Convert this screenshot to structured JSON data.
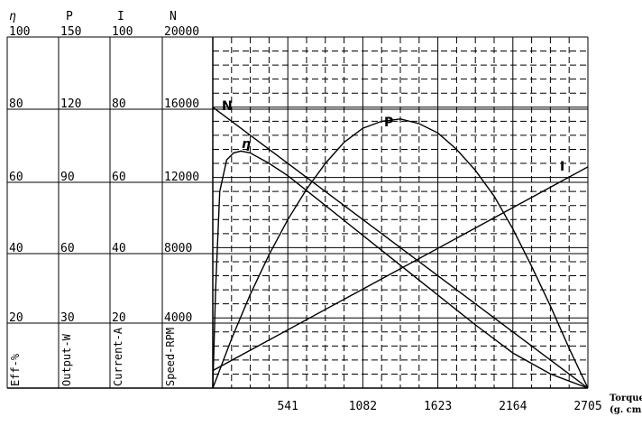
{
  "chart_data": {
    "type": "line",
    "x_axis": {
      "label_line1": "Torque",
      "label_line2": "(g. cm)",
      "ticks": [
        "541",
        "1082",
        "1623",
        "2164",
        "2705"
      ],
      "tick_values": [
        541,
        1082,
        1623,
        2164,
        2705
      ],
      "range": [
        0,
        2705
      ]
    },
    "y_axes": [
      {
        "symbol": "η",
        "title": "Eff-%",
        "top": "100",
        "ticks": [
          "80",
          "60",
          "40",
          "20"
        ],
        "range": [
          0,
          100
        ]
      },
      {
        "symbol": "P",
        "title": "Output-W",
        "top": "150",
        "ticks": [
          "120",
          "90",
          "60",
          "30"
        ],
        "range": [
          0,
          150
        ]
      },
      {
        "symbol": "I",
        "title": "Current-A",
        "top": "100",
        "ticks": [
          "80",
          "60",
          "40",
          "20"
        ],
        "range": [
          0,
          100
        ]
      },
      {
        "symbol": "N",
        "title": "Speed-RPM",
        "top": "20000",
        "ticks": [
          "16000",
          "12000",
          "8000",
          "4000"
        ],
        "range": [
          0,
          20000
        ]
      }
    ],
    "series": [
      {
        "name": "N",
        "axis": 3,
        "x": [
          0,
          2705
        ],
        "y": [
          16000,
          0
        ]
      },
      {
        "name": "I",
        "axis": 2,
        "x": [
          0,
          2705
        ],
        "y": [
          5,
          63
        ]
      },
      {
        "name": "P",
        "axis": 1,
        "x": [
          0,
          135,
          270,
          406,
          541,
          676,
          812,
          947,
          1082,
          1217,
          1353,
          1488,
          1623,
          1758,
          1894,
          2029,
          2164,
          2299,
          2435,
          2570,
          2705
        ],
        "y": [
          0,
          21,
          40,
          57,
          72,
          85,
          96,
          105,
          111,
          114,
          115,
          113,
          109,
          102,
          93,
          82,
          68,
          52,
          35,
          17,
          0
        ]
      },
      {
        "name": "η",
        "axis": 0,
        "x": [
          0,
          20,
          50,
          100,
          150,
          203,
          270,
          406,
          541,
          812,
          1082,
          1353,
          1623,
          1894,
          2164,
          2435,
          2705
        ],
        "y": [
          0,
          28,
          56,
          65,
          67,
          67.5,
          67,
          64,
          60.5,
          52,
          43.5,
          35,
          26.5,
          18,
          10,
          4,
          0
        ]
      }
    ],
    "grid": true
  }
}
